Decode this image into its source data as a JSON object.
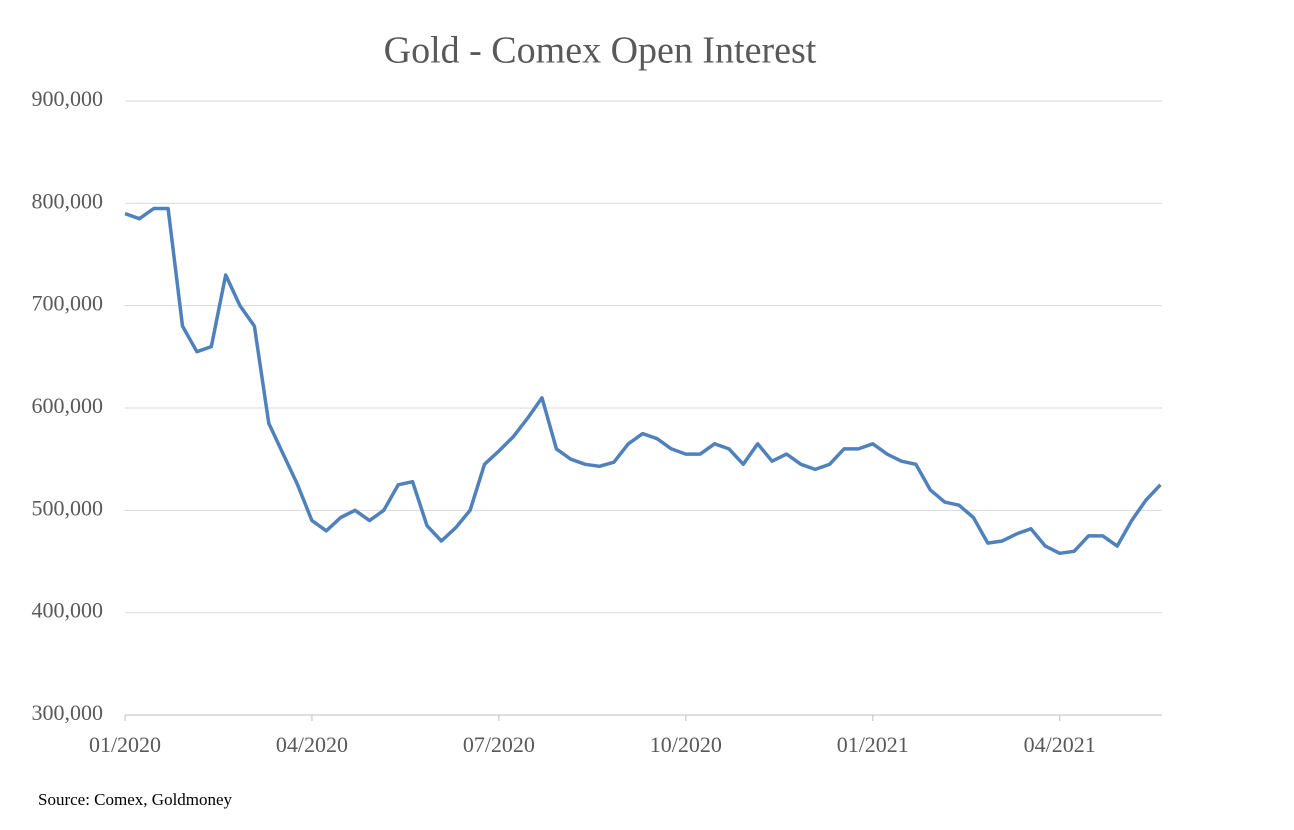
{
  "chart_data": {
    "type": "line",
    "title": "Gold - Comex Open Interest",
    "source": "Source: Comex, Goldmoney",
    "categories": [
      "01/2020",
      null,
      null,
      null,
      null,
      null,
      null,
      null,
      null,
      null,
      null,
      null,
      null,
      "04/2020",
      null,
      null,
      null,
      null,
      null,
      null,
      null,
      null,
      null,
      null,
      null,
      null,
      "07/2020",
      null,
      null,
      null,
      null,
      null,
      null,
      null,
      null,
      null,
      null,
      null,
      null,
      "10/2020",
      null,
      null,
      null,
      null,
      null,
      null,
      null,
      null,
      null,
      null,
      null,
      null,
      "01/2021",
      null,
      null,
      null,
      null,
      null,
      null,
      null,
      null,
      null,
      null,
      null,
      null,
      "04/2021",
      null,
      null,
      null,
      null,
      null,
      null,
      null
    ],
    "series": [
      {
        "name": "Open Interest",
        "color": "#4f81bd",
        "values": [
          790000,
          785000,
          795000,
          795000,
          680000,
          655000,
          660000,
          730000,
          700000,
          680000,
          585000,
          555000,
          525000,
          490000,
          480000,
          493000,
          500000,
          490000,
          500000,
          525000,
          528000,
          485000,
          470000,
          483000,
          500000,
          545000,
          558000,
          572000,
          590000,
          610000,
          560000,
          550000,
          545000,
          543000,
          547000,
          565000,
          575000,
          570000,
          560000,
          555000,
          555000,
          565000,
          560000,
          545000,
          565000,
          548000,
          555000,
          545000,
          540000,
          545000,
          560000,
          560000,
          565000,
          555000,
          548000,
          545000,
          520000,
          508000,
          505000,
          493000,
          468000,
          470000,
          477000,
          482000,
          465000,
          458000,
          460000,
          475000,
          475000,
          465000,
          490000,
          510000,
          525000
        ]
      }
    ],
    "ylim": [
      300000,
      900000
    ],
    "yticks": [
      {
        "value": 300000,
        "label": "300,000"
      },
      {
        "value": 400000,
        "label": "400,000"
      },
      {
        "value": 500000,
        "label": "500,000"
      },
      {
        "value": 600000,
        "label": "600,000"
      },
      {
        "value": 700000,
        "label": "700,000"
      },
      {
        "value": 800000,
        "label": "800,000"
      },
      {
        "value": 900000,
        "label": "900,000"
      }
    ],
    "grid": true
  }
}
